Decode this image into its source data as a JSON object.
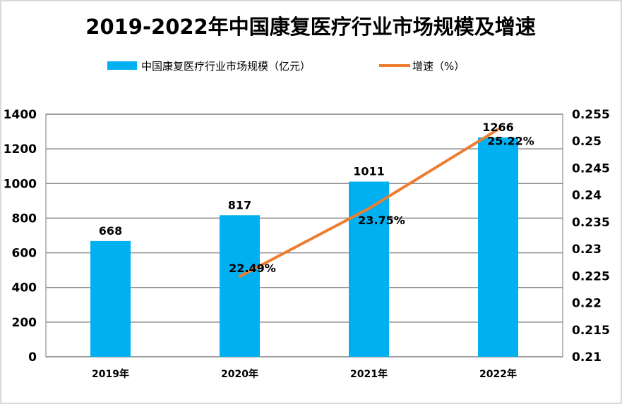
{
  "chart_data": {
    "type": "bar+line",
    "title": "2019-2022年中国康复医疗行业市场规模及增速",
    "categories": [
      "2019年",
      "2020年",
      "2021年",
      "2022年"
    ],
    "series": [
      {
        "name": "中国康复医疗行业市场规模（亿元）",
        "type": "bar",
        "axis": "left",
        "color": "#00b0f0",
        "values": [
          668,
          817,
          1011,
          1266
        ],
        "labels": [
          "668",
          "817",
          "1011",
          "1266"
        ]
      },
      {
        "name": "增速（%）",
        "type": "line",
        "axis": "right",
        "color": "#ed7d31",
        "values": [
          null,
          0.2249,
          0.2375,
          0.2522
        ],
        "labels": [
          "",
          "22.49%",
          "23.75%",
          "25.22%"
        ]
      }
    ],
    "y_left": {
      "min": 0,
      "max": 1400,
      "ticks": [
        "0",
        "200",
        "400",
        "600",
        "800",
        "1000",
        "1200",
        "1400"
      ]
    },
    "y_right": {
      "min": 0.21,
      "max": 0.255,
      "ticks": [
        "0.21",
        "0.215",
        "0.22",
        "0.225",
        "0.23",
        "0.235",
        "0.24",
        "0.245",
        "0.25",
        "0.255"
      ]
    },
    "grid": true,
    "legend": "top"
  }
}
